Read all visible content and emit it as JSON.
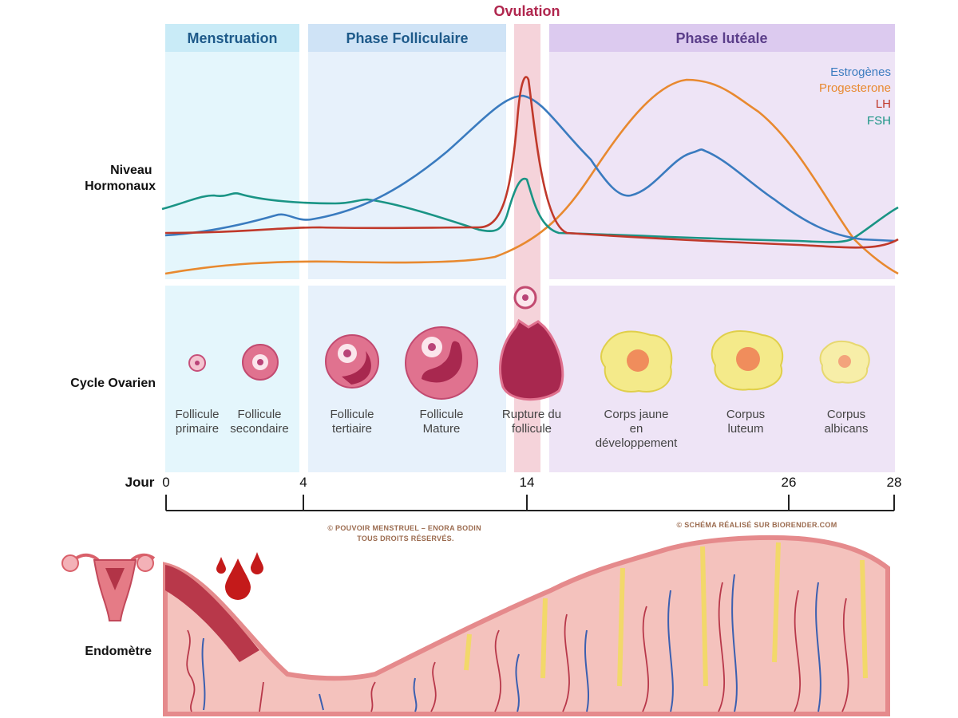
{
  "phases": [
    "Menstruation",
    "Phase Folliculaire",
    "Ovulation",
    "Phase lutéale"
  ],
  "hormones": {
    "row_label": [
      "Niveau",
      "Hormonaux"
    ],
    "legend": [
      "Estrogènes",
      "Progesterone",
      "LH",
      "FSH"
    ]
  },
  "ovarian_cycle": {
    "row_label": "Cycle Ovarien",
    "stages": [
      [
        "Follicule",
        "primaire"
      ],
      [
        "Follicule",
        "secondaire"
      ],
      [
        "Follicule",
        "tertiaire"
      ],
      [
        "Follicule",
        "Mature"
      ],
      [
        "Rupture du",
        "follicule"
      ],
      [
        "Corps jaune",
        "en",
        "développement"
      ],
      [
        "Corpus",
        "luteum"
      ],
      [
        "Corpus",
        "albicans"
      ]
    ]
  },
  "day_axis": {
    "label": "Jour",
    "days": [
      0,
      4,
      14,
      26,
      28
    ]
  },
  "endometrium": {
    "row_label": "Endomètre"
  },
  "credits": [
    [
      "© POUVOIR MENSTRUEL – ENORA BODIN",
      "TOUS DROITS RÉSERVÉS."
    ],
    [
      "© SCHÉMA RÉALISÉ SUR BIORENDER.COM"
    ]
  ]
}
